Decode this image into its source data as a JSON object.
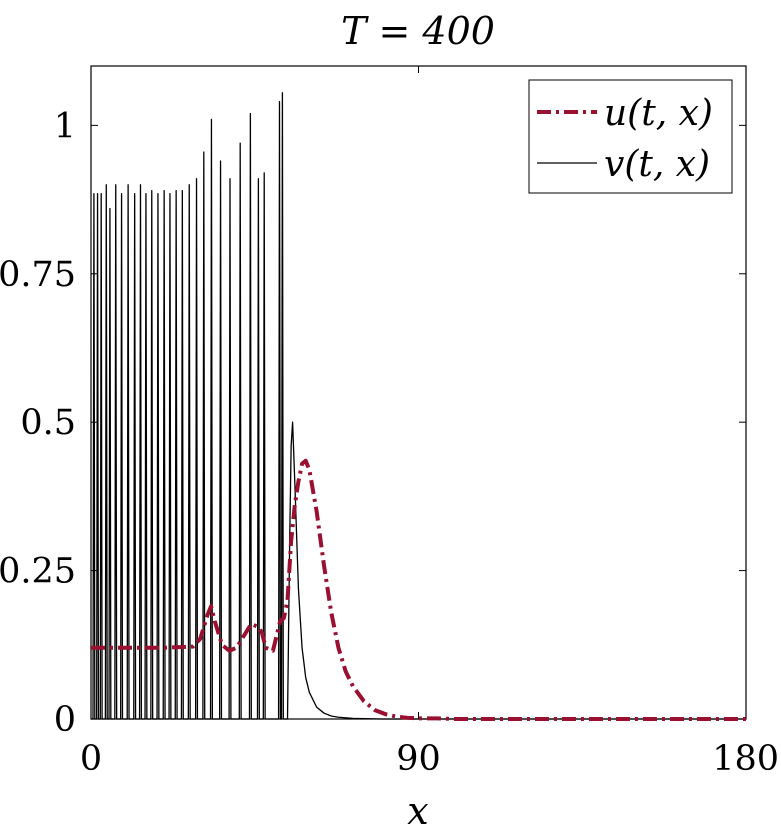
{
  "chart_data": {
    "type": "line",
    "title": "T = 400",
    "xlabel": "x",
    "ylabel": "",
    "xlim": [
      0,
      180
    ],
    "ylim": [
      0,
      1.1
    ],
    "xticks": [
      0,
      90,
      180
    ],
    "xtick_labels": [
      "0",
      "90",
      "180"
    ],
    "yticks": [
      0,
      0.25,
      0.5,
      0.75,
      1
    ],
    "ytick_labels": [
      "0",
      "0.25",
      "0.5",
      "0.75",
      "1"
    ],
    "grid": false,
    "legend_position": "top-right",
    "series": [
      {
        "name": "u(t, x)",
        "color": "#9b1030",
        "style": "dash-dot",
        "x": [
          0,
          10,
          20,
          28,
          30,
          31,
          32,
          33,
          34,
          36,
          38,
          40,
          42,
          44,
          46,
          47,
          48,
          50,
          51,
          52,
          53,
          54,
          55,
          56,
          57,
          58,
          59,
          60,
          62,
          64,
          66,
          68,
          70,
          72,
          75,
          78,
          81,
          84,
          87,
          90,
          95,
          100,
          120,
          140,
          160,
          180
        ],
        "y": [
          0.12,
          0.12,
          0.12,
          0.122,
          0.135,
          0.155,
          0.175,
          0.19,
          0.165,
          0.125,
          0.115,
          0.12,
          0.14,
          0.16,
          0.155,
          0.145,
          0.12,
          0.115,
          0.14,
          0.165,
          0.17,
          0.2,
          0.3,
          0.36,
          0.4,
          0.43,
          0.435,
          0.42,
          0.35,
          0.26,
          0.18,
          0.12,
          0.08,
          0.055,
          0.03,
          0.015,
          0.008,
          0.004,
          0.002,
          0.001,
          0.001,
          0.0,
          0.0,
          0.0,
          0.0,
          0.0
        ]
      },
      {
        "name": "v(t, x)",
        "color": "#000000",
        "style": "solid",
        "spikes_x": [
          0.8,
          1.8,
          2.8,
          4.2,
          5.2,
          6.8,
          8.4,
          10.2,
          12.0,
          13.6,
          15.1,
          16.7,
          18.4,
          20.1,
          21.7,
          23.4,
          25.1,
          27.0,
          29.0,
          31.0,
          33.1,
          35.6,
          38.2,
          41.0,
          43.8,
          46.0,
          47.6,
          51.8,
          52.6
        ],
        "spikes_y": [
          0.885,
          0.885,
          0.885,
          0.9,
          0.86,
          0.9,
          0.885,
          0.9,
          0.885,
          0.9,
          0.885,
          0.89,
          0.885,
          0.89,
          0.885,
          0.89,
          0.89,
          0.9,
          0.91,
          0.955,
          1.01,
          0.94,
          0.91,
          0.97,
          1.02,
          0.91,
          0.92,
          1.04,
          1.055
        ],
        "tail_x": [
          54,
          54.6,
          55.0,
          55.4,
          56.0,
          57.0,
          58.0,
          59.0,
          60.0,
          62.0,
          64.0,
          66.0,
          68.0,
          72.0,
          80.0,
          90.0,
          180.0
        ],
        "tail_y": [
          0.0,
          0.3,
          0.46,
          0.5,
          0.4,
          0.22,
          0.12,
          0.07,
          0.045,
          0.02,
          0.01,
          0.005,
          0.003,
          0.001,
          0.0,
          0.0,
          0.0
        ]
      }
    ]
  }
}
